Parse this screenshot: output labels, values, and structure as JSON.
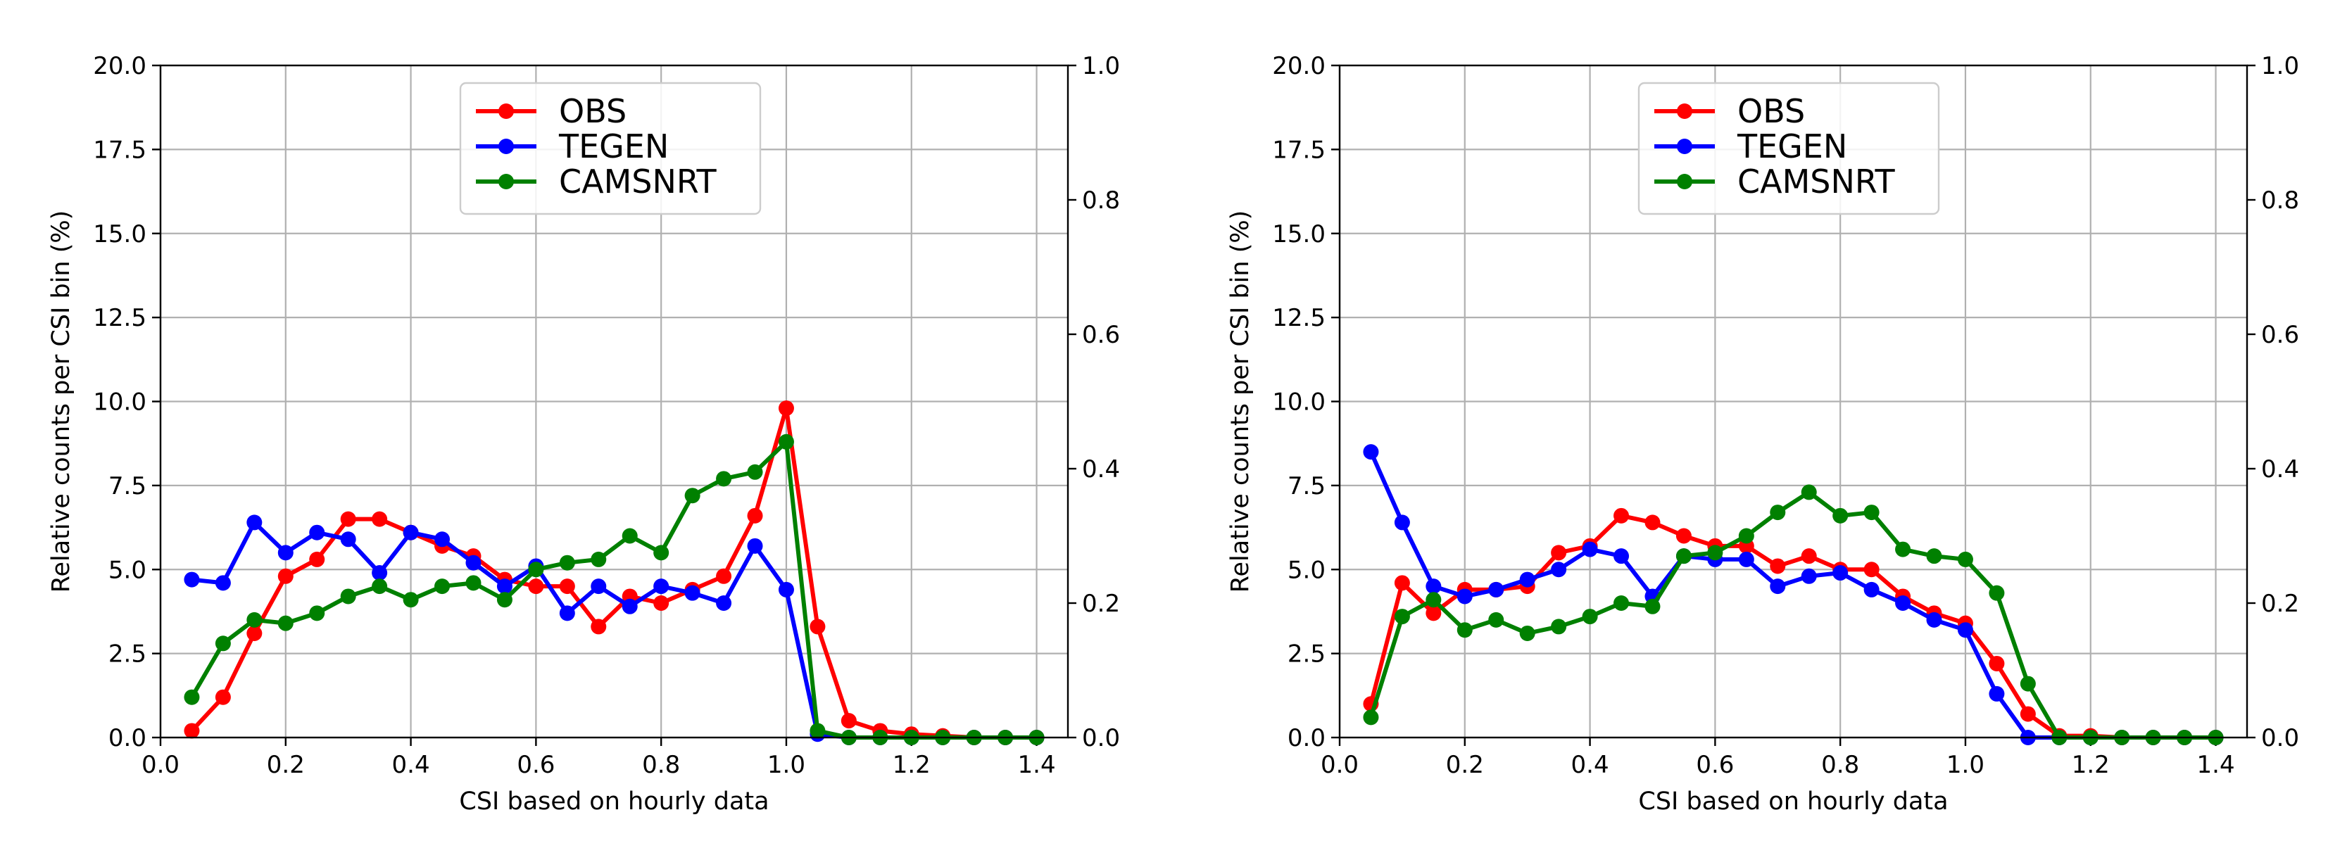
{
  "chart_data": [
    {
      "type": "line",
      "title": "",
      "xlabel": "CSI based on hourly data",
      "ylabel": "Relative counts per CSI bin (%)",
      "xlim": [
        0.0,
        1.45
      ],
      "ylim": [
        0.0,
        20.0
      ],
      "y2lim": [
        0.0,
        1.0
      ],
      "xticks": [
        "0.0",
        "0.2",
        "0.4",
        "0.6",
        "0.8",
        "1.0",
        "1.2",
        "1.4"
      ],
      "yticks": [
        "0.0",
        "2.5",
        "5.0",
        "7.5",
        "10.0",
        "12.5",
        "15.0",
        "17.5",
        "20.0"
      ],
      "y2ticks": [
        "0.0",
        "0.2",
        "0.4",
        "0.6",
        "0.8",
        "1.0"
      ],
      "grid": true,
      "legend": "upper-center",
      "x": [
        0.05,
        0.1,
        0.15,
        0.2,
        0.25,
        0.3,
        0.35,
        0.4,
        0.45,
        0.5,
        0.55,
        0.6,
        0.65,
        0.7,
        0.75,
        0.8,
        0.85,
        0.9,
        0.95,
        1.0,
        1.05,
        1.1,
        1.15,
        1.2,
        1.25,
        1.3,
        1.35,
        1.4
      ],
      "series": [
        {
          "name": "OBS",
          "color": "#ff0000",
          "values": [
            0.2,
            1.2,
            3.1,
            4.8,
            5.3,
            6.5,
            6.5,
            6.1,
            5.7,
            5.4,
            4.7,
            4.5,
            4.5,
            3.3,
            4.2,
            4.0,
            4.4,
            4.8,
            6.6,
            9.8,
            3.3,
            0.5,
            0.2,
            0.1,
            0.05,
            0.0,
            0.0,
            0.0
          ]
        },
        {
          "name": "TEGEN",
          "color": "#0000ff",
          "values": [
            4.7,
            4.6,
            6.4,
            5.5,
            6.1,
            5.9,
            4.9,
            6.1,
            5.9,
            5.2,
            4.5,
            5.1,
            3.7,
            4.5,
            3.9,
            4.5,
            4.3,
            4.0,
            5.7,
            4.4,
            0.1,
            0.0,
            0.0,
            0.0,
            0.0,
            0.0,
            0.0,
            0.0
          ]
        },
        {
          "name": "CAMSNRT",
          "color": "#008000",
          "values": [
            1.2,
            2.8,
            3.5,
            3.4,
            3.7,
            4.2,
            4.5,
            4.1,
            4.5,
            4.6,
            4.1,
            5.0,
            5.2,
            5.3,
            6.0,
            5.5,
            7.2,
            7.7,
            7.9,
            8.8,
            0.2,
            0.0,
            0.0,
            0.0,
            0.0,
            0.0,
            0.0,
            0.0
          ]
        }
      ]
    },
    {
      "type": "line",
      "title": "",
      "xlabel": "CSI based on hourly data",
      "ylabel": "Relative counts per CSI bin (%)",
      "xlim": [
        0.0,
        1.45
      ],
      "ylim": [
        0.0,
        20.0
      ],
      "y2lim": [
        0.0,
        1.0
      ],
      "xticks": [
        "0.0",
        "0.2",
        "0.4",
        "0.6",
        "0.8",
        "1.0",
        "1.2",
        "1.4"
      ],
      "yticks": [
        "0.0",
        "2.5",
        "5.0",
        "7.5",
        "10.0",
        "12.5",
        "15.0",
        "17.5",
        "20.0"
      ],
      "y2ticks": [
        "0.0",
        "0.2",
        "0.4",
        "0.6",
        "0.8",
        "1.0"
      ],
      "grid": true,
      "legend": "upper-center",
      "x": [
        0.05,
        0.1,
        0.15,
        0.2,
        0.25,
        0.3,
        0.35,
        0.4,
        0.45,
        0.5,
        0.55,
        0.6,
        0.65,
        0.7,
        0.75,
        0.8,
        0.85,
        0.9,
        0.95,
        1.0,
        1.05,
        1.1,
        1.15,
        1.2,
        1.25,
        1.3,
        1.35,
        1.4
      ],
      "series": [
        {
          "name": "OBS",
          "color": "#ff0000",
          "values": [
            1.0,
            4.6,
            3.7,
            4.4,
            4.4,
            4.5,
            5.5,
            5.7,
            6.6,
            6.4,
            6.0,
            5.7,
            5.7,
            5.1,
            5.4,
            5.0,
            5.0,
            4.2,
            3.7,
            3.4,
            2.2,
            0.7,
            0.05,
            0.05,
            0.0,
            0.0,
            0.0,
            0.0
          ]
        },
        {
          "name": "TEGEN",
          "color": "#0000ff",
          "values": [
            8.5,
            6.4,
            4.5,
            4.2,
            4.4,
            4.7,
            5.0,
            5.6,
            5.4,
            4.2,
            5.4,
            5.3,
            5.3,
            4.5,
            4.8,
            4.9,
            4.4,
            4.0,
            3.5,
            3.2,
            1.3,
            0.0,
            0.0,
            0.0,
            0.0,
            0.0,
            0.0,
            0.0
          ]
        },
        {
          "name": "CAMSNRT",
          "color": "#008000",
          "values": [
            0.6,
            3.6,
            4.1,
            3.2,
            3.5,
            3.1,
            3.3,
            3.6,
            4.0,
            3.9,
            5.4,
            5.5,
            6.0,
            6.7,
            7.3,
            6.6,
            6.7,
            5.6,
            5.4,
            5.3,
            4.3,
            1.6,
            0.0,
            0.0,
            0.0,
            0.0,
            0.0,
            0.0
          ]
        }
      ]
    }
  ]
}
